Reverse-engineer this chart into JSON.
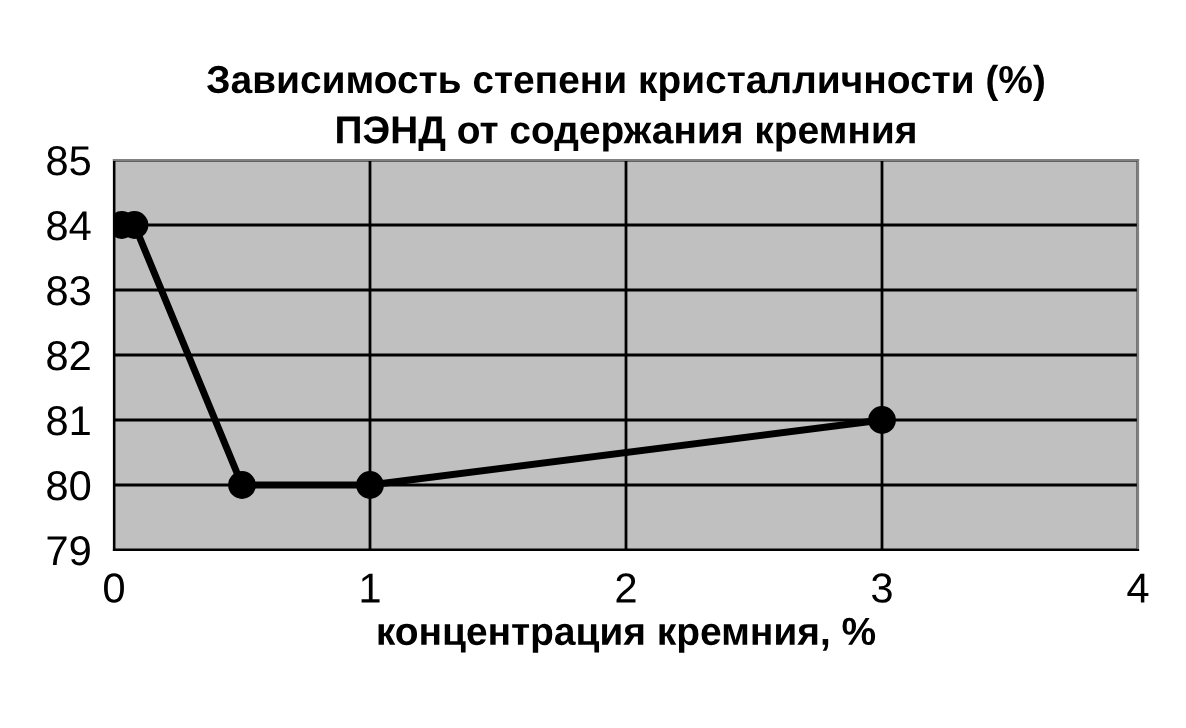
{
  "chart_data": {
    "type": "line",
    "title": "Зависимость степени кристалличности (%)\nПЭНД от содержания кремния",
    "xlabel": "концентрация кремния, %",
    "series": [
      {
        "color": "#000000",
        "x": [
          0.03,
          0.08,
          0.5,
          1,
          3
        ],
        "values": [
          84,
          84,
          80,
          80,
          81
        ]
      }
    ],
    "xlim": [
      0,
      4
    ],
    "xticks": [
      0,
      1,
      2,
      3,
      4
    ],
    "ylim": [
      79,
      85
    ],
    "yticks": [
      79,
      80,
      81,
      82,
      83,
      84,
      85
    ],
    "grid": true,
    "marker": "circle",
    "line_style": "solid"
  }
}
